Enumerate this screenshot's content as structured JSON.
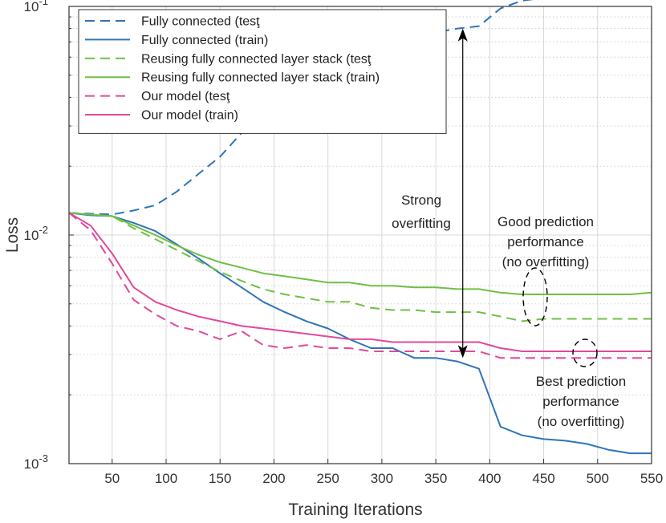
{
  "chart_data": {
    "type": "line",
    "xlabel": "Training Iterations",
    "ylabel": "Loss",
    "xlim": [
      10,
      550
    ],
    "ylim": [
      0.001,
      0.1
    ],
    "y_scale": "log",
    "grid": true,
    "legend_position": "top-left",
    "x_ticks": [
      50,
      100,
      150,
      200,
      250,
      300,
      350,
      400,
      450,
      500,
      550
    ],
    "y_ticks": [
      {
        "value": 0.001,
        "base": "10",
        "exp": "-3"
      },
      {
        "value": 0.01,
        "base": "10",
        "exp": "-2"
      },
      {
        "value": 0.1,
        "base": "10",
        "exp": "-1"
      }
    ],
    "series": [
      {
        "name": "Fully connected (test)",
        "legend_label": "Fully connected (tesţ",
        "color": "#2e75b6",
        "dash": "dashed",
        "x": [
          10,
          50,
          70,
          90,
          110,
          130,
          150,
          170,
          190,
          210,
          230,
          250,
          270,
          290,
          310,
          330,
          350,
          370,
          390,
          410,
          430,
          450,
          470,
          490,
          510,
          530,
          550
        ],
        "y": [
          0.0125,
          0.0123,
          0.0128,
          0.0135,
          0.0155,
          0.0185,
          0.022,
          0.028,
          0.034,
          0.04,
          0.047,
          0.054,
          0.06,
          0.065,
          0.069,
          0.073,
          0.077,
          0.08,
          0.082,
          0.098,
          0.106,
          0.109,
          0.111,
          0.112,
          0.113,
          0.114,
          0.114
        ]
      },
      {
        "name": "Fully connected (train)",
        "legend_label": "Fully connected (train)",
        "color": "#2e75b6",
        "dash": "solid",
        "x": [
          10,
          30,
          50,
          70,
          90,
          110,
          130,
          150,
          170,
          190,
          210,
          230,
          250,
          270,
          290,
          310,
          330,
          350,
          370,
          390,
          410,
          430,
          450,
          470,
          490,
          510,
          530,
          550
        ],
        "y": [
          0.0125,
          0.0122,
          0.0121,
          0.0113,
          0.0104,
          0.0091,
          0.0079,
          0.0068,
          0.0059,
          0.0051,
          0.0046,
          0.0042,
          0.0039,
          0.0035,
          0.0032,
          0.0032,
          0.0029,
          0.0029,
          0.0028,
          0.0026,
          0.00145,
          0.00133,
          0.00128,
          0.00126,
          0.00122,
          0.00115,
          0.00111,
          0.00111
        ]
      },
      {
        "name": "Reusing fully connected layer stack (test)",
        "legend_label": "Reusing fully connected layer stack (tesţ",
        "color": "#70bf44",
        "dash": "dashed",
        "x": [
          10,
          50,
          70,
          90,
          110,
          130,
          150,
          170,
          190,
          210,
          230,
          250,
          270,
          290,
          310,
          330,
          350,
          370,
          390,
          410,
          430,
          450,
          470,
          490,
          510,
          530,
          550
        ],
        "y": [
          0.0125,
          0.0121,
          0.0107,
          0.0096,
          0.0086,
          0.0077,
          0.0069,
          0.0063,
          0.0058,
          0.0055,
          0.0053,
          0.0051,
          0.0051,
          0.0048,
          0.0047,
          0.0047,
          0.0046,
          0.0046,
          0.0046,
          0.0044,
          0.0042,
          0.0043,
          0.0043,
          0.0043,
          0.0043,
          0.0043,
          0.0043
        ]
      },
      {
        "name": "Reusing fully connected layer stack (train)",
        "legend_label": "Reusing fully connected layer stack (train)",
        "color": "#70bf44",
        "dash": "solid",
        "x": [
          10,
          50,
          70,
          90,
          110,
          130,
          150,
          170,
          190,
          210,
          230,
          250,
          270,
          290,
          310,
          330,
          350,
          370,
          390,
          410,
          430,
          450,
          470,
          490,
          510,
          530,
          550
        ],
        "y": [
          0.0125,
          0.0121,
          0.011,
          0.01,
          0.009,
          0.0082,
          0.0076,
          0.0072,
          0.0068,
          0.0066,
          0.0064,
          0.0062,
          0.0062,
          0.006,
          0.006,
          0.0059,
          0.0059,
          0.0058,
          0.0058,
          0.0056,
          0.0055,
          0.0055,
          0.0055,
          0.0055,
          0.0055,
          0.0055,
          0.0056
        ]
      },
      {
        "name": "Our model (test)",
        "legend_label": "Our model (tesţ",
        "color": "#e0499c",
        "dash": "dashed",
        "x": [
          10,
          30,
          50,
          70,
          90,
          110,
          130,
          150,
          170,
          190,
          210,
          230,
          250,
          270,
          290,
          310,
          330,
          350,
          370,
          390,
          410,
          430,
          450,
          470,
          490,
          510,
          530,
          550
        ],
        "y": [
          0.0125,
          0.0105,
          0.0075,
          0.0052,
          0.0045,
          0.004,
          0.0038,
          0.0035,
          0.0038,
          0.0033,
          0.0032,
          0.0033,
          0.0032,
          0.0032,
          0.0031,
          0.0031,
          0.0031,
          0.0031,
          0.0031,
          0.0031,
          0.0029,
          0.0029,
          0.0029,
          0.0029,
          0.0029,
          0.0029,
          0.0029,
          0.0029
        ]
      },
      {
        "name": "Our model (train)",
        "legend_label": "Our model (train)",
        "color": "#e0499c",
        "dash": "solid",
        "x": [
          10,
          30,
          50,
          70,
          90,
          110,
          130,
          150,
          170,
          190,
          210,
          230,
          250,
          270,
          290,
          310,
          330,
          350,
          370,
          390,
          410,
          430,
          450,
          470,
          490,
          510,
          530,
          550
        ],
        "y": [
          0.0125,
          0.011,
          0.0083,
          0.0059,
          0.0051,
          0.0047,
          0.0044,
          0.0042,
          0.004,
          0.0039,
          0.0038,
          0.0037,
          0.0036,
          0.0035,
          0.0035,
          0.0034,
          0.0034,
          0.0034,
          0.0034,
          0.0034,
          0.0032,
          0.0031,
          0.0031,
          0.0031,
          0.0031,
          0.0031,
          0.0031,
          0.0031
        ]
      }
    ],
    "annotations": [
      {
        "id": "strong",
        "lines": [
          "Strong",
          "overfitting"
        ]
      },
      {
        "id": "good",
        "lines": [
          "Good prediction",
          "performance",
          "(no overfitting)"
        ]
      },
      {
        "id": "best",
        "lines": [
          "Best prediction",
          "performance",
          "(no overfitting)"
        ]
      }
    ],
    "arrow": {
      "x": 375,
      "y_from": 0.0029,
      "y_to": 0.08
    }
  }
}
